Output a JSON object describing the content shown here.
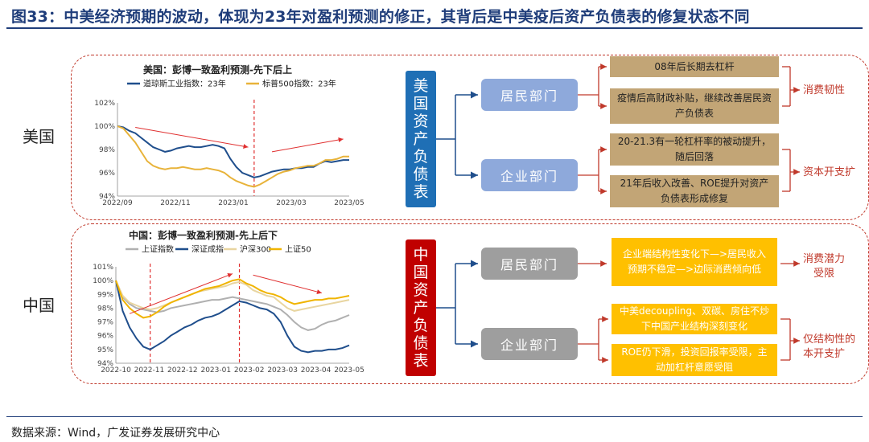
{
  "figure": {
    "title": "图33：中美经济预期的波动，体现为23年对盈利预测的修正，其背后是中美疫后资产负债表的修复状态不同",
    "source": "数据来源：Wind，广发证券发展研究中心"
  },
  "us": {
    "country_label": "美国",
    "balance_sheet_label": [
      "美",
      "国",
      "资",
      "产",
      "负",
      "债",
      "表"
    ],
    "household": {
      "label": "居民部门",
      "notes": [
        "08年后长期去杠杆",
        "疫情后高财政补贴，继续改善居民资产负债表"
      ],
      "result": "消费韧性"
    },
    "corporate": {
      "label": "企业部门",
      "notes": [
        "20-21.3有一轮杠杆率的被动提升，随后回落",
        "21年后收入改善、ROE提升对资产负债表形成修复"
      ],
      "result": "资本开支扩"
    },
    "colors": {
      "box": "#1f6fb5",
      "dept": "#8ea9db",
      "note": "#c2a576"
    }
  },
  "cn": {
    "country_label": "中国",
    "balance_sheet_label": [
      "中",
      "国",
      "资",
      "产",
      "负",
      "债",
      "表"
    ],
    "household": {
      "label": "居民部门",
      "notes": [
        "企业端结构性变化下—>居民收入预期不稳定—>边际消费倾向低"
      ],
      "result": [
        "消费潜力",
        "受限"
      ]
    },
    "corporate": {
      "label": "企业部门",
      "notes": [
        "中美decoupling、双碳、房住不炒下中国产业结构深刻变化",
        "ROE仍下滑，投资回报率受限，主动加杠杆意愿受阻"
      ],
      "result": [
        "仅结构性的",
        "本开支扩"
      ]
    },
    "colors": {
      "box": "#c00000",
      "dept": "#9e9e9e",
      "note": "#ffc000"
    }
  },
  "chart_data": [
    {
      "type": "line",
      "title": "美国：彭博一致盈利预测-先下后上",
      "x_ticks": [
        "2022/09",
        "2022/11",
        "2023/01",
        "2023/03",
        "2023/05"
      ],
      "y_ticks": [
        "94%",
        "96%",
        "98%",
        "100%",
        "102%"
      ],
      "ylim": [
        94,
        102
      ],
      "series": [
        {
          "name": "道琼斯工业指数：23年",
          "color": "#1f4e8c",
          "values": [
            100.0,
            99.9,
            99.6,
            99.4,
            99.0,
            98.6,
            98.2,
            98.0,
            97.8,
            97.9,
            98.1,
            98.2,
            98.3,
            98.2,
            98.2,
            98.3,
            98.4,
            98.3,
            98.1,
            97.2,
            96.5,
            96.0,
            95.8,
            95.6,
            95.7,
            95.9,
            96.1,
            96.2,
            96.3,
            96.3,
            96.4,
            96.4,
            96.5,
            96.5,
            96.8,
            97.0,
            96.9,
            97.0,
            97.1,
            97.1
          ]
        },
        {
          "name": "标普500指数：23年",
          "color": "#e8b33a",
          "values": [
            100.0,
            99.8,
            99.2,
            98.6,
            97.8,
            97.0,
            96.6,
            96.4,
            96.3,
            96.4,
            96.4,
            96.5,
            96.4,
            96.3,
            96.3,
            96.4,
            96.3,
            96.2,
            96.0,
            95.6,
            95.3,
            95.1,
            94.9,
            94.8,
            95.0,
            95.3,
            95.6,
            95.9,
            96.1,
            96.2,
            96.4,
            96.5,
            96.6,
            96.6,
            96.8,
            97.1,
            97.1,
            97.2,
            97.4,
            97.4
          ]
        }
      ],
      "markers": {
        "split_index": 23
      }
    },
    {
      "type": "line",
      "title": "中国：彭博一致盈利预测-先上后下",
      "x_ticks": [
        "2022-10",
        "2022-11",
        "2022-12",
        "2023-01",
        "2023-02",
        "2023-03",
        "2023-04",
        "2023-05"
      ],
      "y_ticks": [
        "94%",
        "95%",
        "96%",
        "97%",
        "98%",
        "99%",
        "100%",
        "101%"
      ],
      "ylim": [
        94,
        101
      ],
      "series": [
        {
          "name": "上证指数",
          "color": "#b0b0b0",
          "values": [
            100.0,
            98.8,
            98.3,
            98.0,
            97.9,
            97.8,
            97.7,
            97.8,
            98.0,
            98.1,
            98.2,
            98.3,
            98.4,
            98.5,
            98.6,
            98.6,
            98.7,
            98.8,
            98.7,
            98.6,
            98.5,
            98.4,
            98.3,
            98.1,
            97.9,
            97.5,
            97.0,
            96.6,
            96.4,
            96.5,
            96.8,
            97.0,
            97.1,
            97.3,
            97.5
          ]
        },
        {
          "name": "深证成指",
          "color": "#1f4e8c",
          "values": [
            100.0,
            97.8,
            96.6,
            95.8,
            95.2,
            95.0,
            95.3,
            95.6,
            96.0,
            96.3,
            96.6,
            96.8,
            97.1,
            97.3,
            97.4,
            97.6,
            97.9,
            98.2,
            98.5,
            98.4,
            98.2,
            98.0,
            97.9,
            97.6,
            97.0,
            96.0,
            95.2,
            94.9,
            94.8,
            94.9,
            94.9,
            95.0,
            95.0,
            95.1,
            95.3
          ]
        },
        {
          "name": "沪深300",
          "color": "#e8d5a0",
          "values": [
            100.0,
            98.9,
            98.4,
            98.2,
            98.0,
            97.9,
            98.0,
            98.2,
            98.4,
            98.6,
            98.8,
            99.0,
            99.2,
            99.3,
            99.4,
            99.5,
            99.6,
            99.8,
            99.9,
            99.7,
            99.3,
            99.1,
            98.9,
            98.8,
            98.4,
            98.0,
            97.8,
            97.9,
            98.0,
            98.1,
            98.2,
            98.3,
            98.4,
            98.5,
            98.6
          ]
        },
        {
          "name": "上证50",
          "color": "#f0b400",
          "values": [
            100.0,
            98.6,
            98.0,
            97.6,
            97.3,
            97.4,
            97.7,
            98.1,
            98.4,
            98.6,
            98.8,
            99.0,
            99.2,
            99.4,
            99.5,
            99.6,
            99.8,
            100.0,
            100.1,
            99.8,
            99.6,
            99.3,
            99.1,
            99.0,
            98.8,
            98.5,
            98.3,
            98.4,
            98.5,
            98.6,
            98.6,
            98.7,
            98.7,
            98.8,
            98.9
          ]
        }
      ],
      "markers": {
        "split_indices": [
          5,
          18
        ]
      }
    }
  ]
}
